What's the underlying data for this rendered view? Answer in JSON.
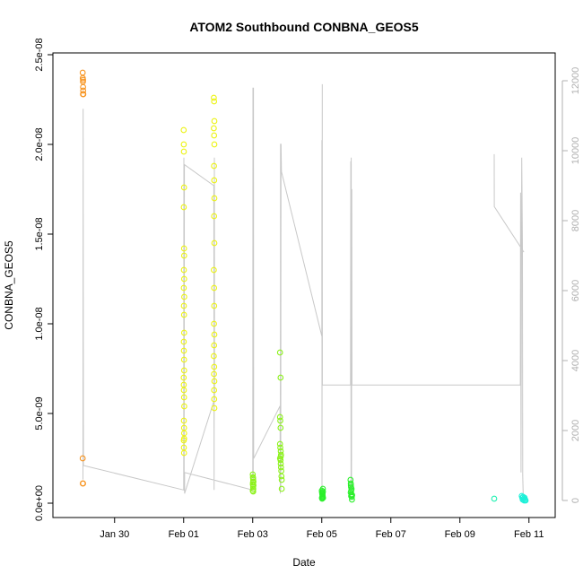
{
  "chart_data": {
    "type": "scatter",
    "title": "ATOM2 Southbound CONBNA_GEOS5",
    "xlabel": "Date",
    "ylabel": "CONBNA_GEOS5",
    "xlim": [
      "2017-01-28T12:00",
      "2017-02-11T12:00"
    ],
    "ylim": [
      0,
      2.5e-08
    ],
    "y_ticks": [
      0,
      5e-09,
      1e-08,
      1.5e-08,
      2e-08,
      2.5e-08
    ],
    "y_tick_labels": [
      "0.0e+00",
      "5.0e-09",
      "1.0e-08",
      "1.5e-08",
      "2.0e-08",
      "2.5e-08"
    ],
    "x_ticks": [
      "2017-01-30",
      "2017-02-01",
      "2017-02-03",
      "2017-02-05",
      "2017-02-07",
      "2017-02-09",
      "2017-02-11"
    ],
    "x_tick_labels": [
      "Jan 30",
      "Feb 01",
      "Feb 03",
      "Feb 05",
      "Feb 07",
      "Feb 09",
      "Feb 11"
    ],
    "y2_ticks": [
      0,
      2000,
      4000,
      6000,
      8000,
      10000,
      12000
    ],
    "y2_lim": [
      0,
      12500
    ],
    "grid": false,
    "legend": "none",
    "line_color": "#c8c8c8",
    "axis2_color": "#b0b0b0",
    "series": [
      {
        "color": "#f7931e",
        "points": [
          [
            "2017-01-29T01:50",
            2.4e-08
          ],
          [
            "2017-01-29T01:55",
            2.37e-08
          ],
          [
            "2017-01-29T02:00",
            2.35e-08
          ],
          [
            "2017-01-29T02:05",
            2.32e-08
          ],
          [
            "2017-01-29T02:10",
            2.3e-08
          ],
          [
            "2017-01-29T02:00",
            2.28e-08
          ],
          [
            "2017-01-29T02:15",
            2.28e-08
          ],
          [
            "2017-01-29T02:05",
            2.36e-08
          ],
          [
            "2017-01-29T01:50",
            2.5e-09
          ],
          [
            "2017-01-29T01:55",
            1.1e-09
          ],
          [
            "2017-01-29T02:05",
            1.1e-09
          ]
        ]
      },
      {
        "color": "#ecf312",
        "points": [
          [
            "2017-02-01T00:00",
            2.08e-08
          ],
          [
            "2017-02-01T00:05",
            2e-08
          ],
          [
            "2017-02-01T00:10",
            1.96e-08
          ],
          [
            "2017-02-01T00:15",
            1.76e-08
          ],
          [
            "2017-02-01T00:05",
            1.65e-08
          ],
          [
            "2017-02-01T00:15",
            1.42e-08
          ],
          [
            "2017-02-01T00:20",
            1.38e-08
          ],
          [
            "2017-02-01T00:10",
            1.3e-08
          ],
          [
            "2017-02-01T00:20",
            1.25e-08
          ],
          [
            "2017-02-01T00:05",
            1.2e-08
          ],
          [
            "2017-02-01T00:25",
            1.15e-08
          ],
          [
            "2017-02-01T00:10",
            1.1e-08
          ],
          [
            "2017-02-01T00:15",
            1.05e-08
          ],
          [
            "2017-02-01T00:20",
            9.5e-09
          ],
          [
            "2017-02-01T00:05",
            9e-09
          ],
          [
            "2017-02-01T00:10",
            8.5e-09
          ],
          [
            "2017-02-01T00:15",
            8e-09
          ],
          [
            "2017-02-01T00:20",
            7.4e-09
          ],
          [
            "2017-02-01T00:00",
            7e-09
          ],
          [
            "2017-02-01T00:05",
            6.6e-09
          ],
          [
            "2017-02-01T00:10",
            6.3e-09
          ],
          [
            "2017-02-01T00:15",
            5.9e-09
          ],
          [
            "2017-02-01T00:25",
            5.4e-09
          ],
          [
            "2017-02-01T00:10",
            4.6e-09
          ],
          [
            "2017-02-01T00:15",
            4.2e-09
          ],
          [
            "2017-02-01T00:20",
            3.9e-09
          ],
          [
            "2017-02-01T00:05",
            3.5e-09
          ],
          [
            "2017-02-01T00:10",
            3.1e-09
          ],
          [
            "2017-02-01T00:15",
            2.8e-09
          ],
          [
            "2017-02-01T00:20",
            3.6e-09
          ],
          [
            "2017-02-01T21:00",
            2.26e-08
          ],
          [
            "2017-02-01T21:10",
            2.24e-08
          ],
          [
            "2017-02-01T21:20",
            2.13e-08
          ],
          [
            "2017-02-01T21:00",
            2.09e-08
          ],
          [
            "2017-02-01T21:10",
            2.05e-08
          ],
          [
            "2017-02-01T21:20",
            2e-08
          ],
          [
            "2017-02-01T21:05",
            1.88e-08
          ],
          [
            "2017-02-01T21:15",
            1.8e-08
          ],
          [
            "2017-02-01T21:20",
            1.7e-08
          ],
          [
            "2017-02-01T21:10",
            1.6e-08
          ],
          [
            "2017-02-01T21:20",
            1.45e-08
          ],
          [
            "2017-02-01T21:00",
            1.3e-08
          ],
          [
            "2017-02-01T21:10",
            1.2e-08
          ],
          [
            "2017-02-01T21:15",
            1.1e-08
          ],
          [
            "2017-02-01T21:05",
            1e-08
          ],
          [
            "2017-02-01T21:20",
            9.4e-09
          ],
          [
            "2017-02-01T21:10",
            8.8e-09
          ],
          [
            "2017-02-01T21:00",
            8.2e-09
          ],
          [
            "2017-02-01T21:15",
            7.6e-09
          ],
          [
            "2017-02-01T21:05",
            7.2e-09
          ],
          [
            "2017-02-01T21:20",
            6.8e-09
          ],
          [
            "2017-02-01T21:10",
            6.3e-09
          ],
          [
            "2017-02-01T21:15",
            5.8e-09
          ],
          [
            "2017-02-01T21:20",
            5.3e-09
          ]
        ]
      },
      {
        "color": "#8cf21a",
        "points": [
          [
            "2017-02-03T00:00",
            1.6e-09
          ],
          [
            "2017-02-03T00:10",
            1.45e-09
          ],
          [
            "2017-02-03T00:20",
            1.3e-09
          ],
          [
            "2017-02-03T00:30",
            1.2e-09
          ],
          [
            "2017-02-03T00:05",
            1.05e-09
          ],
          [
            "2017-02-03T00:15",
            9e-10
          ],
          [
            "2017-02-03T00:25",
            8e-10
          ],
          [
            "2017-02-03T00:00",
            7e-10
          ],
          [
            "2017-02-03T00:20",
            6.5e-10
          ],
          [
            "2017-02-03T00:10",
            1.15e-09
          ],
          [
            "2017-02-03T00:30",
            1e-09
          ],
          [
            "2017-02-03T00:15",
            1.4e-09
          ],
          [
            "2017-02-03T19:00",
            8.4e-09
          ],
          [
            "2017-02-03T19:20",
            7e-09
          ],
          [
            "2017-02-03T19:00",
            4.8e-09
          ],
          [
            "2017-02-03T19:10",
            4.6e-09
          ],
          [
            "2017-02-03T19:20",
            4.2e-09
          ],
          [
            "2017-02-03T19:00",
            3.3e-09
          ],
          [
            "2017-02-03T19:10",
            3.1e-09
          ],
          [
            "2017-02-03T19:30",
            2.9e-09
          ],
          [
            "2017-02-03T19:40",
            2.7e-09
          ],
          [
            "2017-02-03T19:00",
            2.5e-09
          ],
          [
            "2017-02-03T19:20",
            2.4e-09
          ],
          [
            "2017-02-03T19:30",
            2.2e-09
          ],
          [
            "2017-02-03T19:40",
            2e-09
          ],
          [
            "2017-02-03T19:50",
            1.8e-09
          ],
          [
            "2017-02-03T20:00",
            1.5e-09
          ],
          [
            "2017-02-03T20:10",
            1.3e-09
          ],
          [
            "2017-02-03T20:10",
            8e-10
          ],
          [
            "2017-02-03T19:30",
            2.6e-09
          ]
        ]
      },
      {
        "color": "#2bef2b",
        "points": [
          [
            "2017-02-05T00:00",
            7e-10
          ],
          [
            "2017-02-05T00:10",
            6e-10
          ],
          [
            "2017-02-05T00:20",
            5e-10
          ],
          [
            "2017-02-05T00:30",
            4.5e-10
          ],
          [
            "2017-02-05T00:40",
            4e-10
          ],
          [
            "2017-02-05T00:05",
            3e-10
          ],
          [
            "2017-02-05T00:15",
            2.5e-10
          ],
          [
            "2017-02-05T00:25",
            3.5e-10
          ],
          [
            "2017-02-05T00:35",
            5.5e-10
          ],
          [
            "2017-02-05T00:45",
            8e-10
          ],
          [
            "2017-02-05T00:50",
            6.5e-10
          ],
          [
            "2017-02-05T00:55",
            3e-10
          ],
          [
            "2017-02-05T20:00",
            1.3e-09
          ],
          [
            "2017-02-05T20:10",
            1.1e-09
          ],
          [
            "2017-02-05T20:20",
            9e-10
          ],
          [
            "2017-02-05T20:30",
            7e-10
          ],
          [
            "2017-02-05T20:40",
            5e-10
          ],
          [
            "2017-02-05T20:50",
            3.5e-10
          ],
          [
            "2017-02-05T21:00",
            2e-10
          ],
          [
            "2017-02-05T20:05",
            6e-10
          ],
          [
            "2017-02-05T20:25",
            4e-10
          ],
          [
            "2017-02-05T20:45",
            8e-10
          ],
          [
            "2017-02-05T21:05",
            4.5e-10
          ],
          [
            "2017-02-05T20:15",
            1e-09
          ]
        ]
      },
      {
        "color": "#1cf0b0",
        "points": [
          [
            "2017-02-09T23:50",
            2.5e-10
          ]
        ]
      },
      {
        "color": "#1cf0d8",
        "points": [
          [
            "2017-02-10T19:00",
            4e-10
          ],
          [
            "2017-02-10T19:20",
            3e-10
          ],
          [
            "2017-02-10T19:40",
            2e-10
          ],
          [
            "2017-02-10T20:00",
            3.5e-10
          ],
          [
            "2017-02-10T20:20",
            2.5e-10
          ],
          [
            "2017-02-10T20:40",
            1.5e-10
          ],
          [
            "2017-02-10T21:00",
            3e-10
          ],
          [
            "2017-02-10T21:20",
            2e-10
          ],
          [
            "2017-02-10T21:40",
            1.5e-10
          ]
        ]
      }
    ],
    "aux_line": [
      [
        "2017-01-29T02:00",
        600
      ],
      [
        "2017-01-29T02:10",
        11200
      ],
      [
        "2017-01-29T02:20",
        1000
      ],
      [
        "2017-02-01T00:00",
        300
      ],
      [
        "2017-02-01T00:10",
        9800
      ],
      [
        "2017-02-01T00:20",
        500
      ],
      [
        "2017-02-01T00:30",
        9500
      ],
      [
        "2017-02-01T00:35",
        9600
      ],
      [
        "2017-02-01T21:00",
        9000
      ],
      [
        "2017-02-01T21:10",
        300
      ],
      [
        "2017-02-01T21:20",
        9800
      ],
      [
        "2017-02-01T21:30",
        2900
      ],
      [
        "2017-02-01T00:40",
        200
      ],
      [
        "2017-02-01T00:40",
        800
      ],
      [
        "2017-02-03T00:00",
        300
      ],
      [
        "2017-02-03T00:10",
        11800
      ],
      [
        "2017-02-03T00:20",
        500
      ],
      [
        "2017-02-03T00:30",
        11800
      ],
      [
        "2017-02-03T00:40",
        1200
      ],
      [
        "2017-02-03T19:00",
        2700
      ],
      [
        "2017-02-03T19:10",
        200
      ],
      [
        "2017-02-03T19:20",
        10200
      ],
      [
        "2017-02-03T19:30",
        300
      ],
      [
        "2017-02-03T19:40",
        10200
      ],
      [
        "2017-02-03T20:00",
        9400
      ],
      [
        "2017-02-05T00:00",
        4700
      ],
      [
        "2017-02-05T00:05",
        10300
      ],
      [
        "2017-02-05T00:10",
        300
      ],
      [
        "2017-02-05T00:20",
        11900
      ],
      [
        "2017-02-05T00:25",
        3300
      ],
      [
        "2017-02-05T20:00",
        3300
      ],
      [
        "2017-02-05T20:10",
        9700
      ],
      [
        "2017-02-05T20:20",
        300
      ],
      [
        "2017-02-05T20:30",
        9800
      ],
      [
        "2017-02-05T20:40",
        300
      ],
      [
        "2017-02-05T20:50",
        8900
      ],
      [
        "2017-02-05T21:00",
        3300
      ],
      [
        "2017-02-10T18:00",
        3300
      ],
      [
        "2017-02-10T18:10",
        8800
      ],
      [
        "2017-02-10T18:30",
        800
      ],
      [
        "2017-02-10T19:00",
        9800
      ],
      [
        "2017-02-10T19:30",
        7200
      ],
      [
        "2017-02-10T19:40",
        700
      ],
      [
        "2017-02-10T20:00",
        200
      ]
    ],
    "aux_line_2": [
      [
        "2017-02-09T23:50",
        9900
      ],
      [
        "2017-02-09T23:55",
        8400
      ],
      [
        "2017-02-10T20:30",
        7100
      ]
    ]
  }
}
